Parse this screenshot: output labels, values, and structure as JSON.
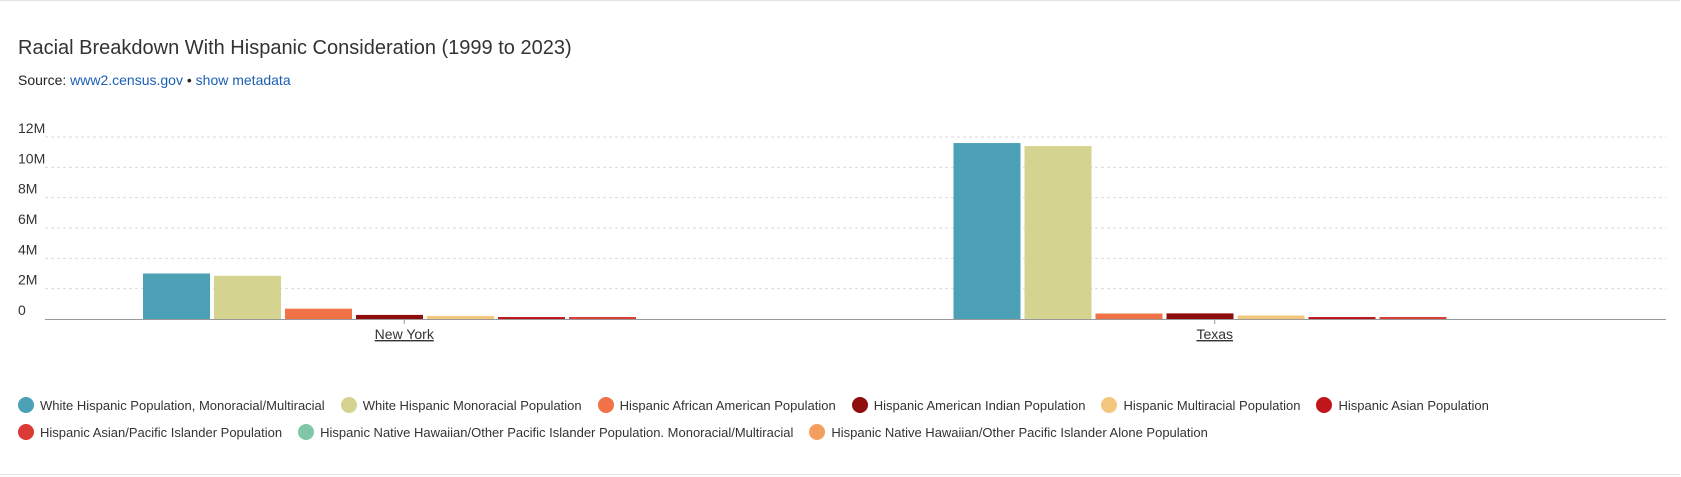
{
  "header": {
    "title": "Racial Breakdown With Hispanic Consideration (1999 to 2023)",
    "source_label": "Source:",
    "source_link": "www2.census.gov",
    "separator": "•",
    "metadata_link": "show metadata"
  },
  "chart_data": {
    "type": "bar",
    "title": "Racial Breakdown With Hispanic Consideration (1999 to 2023)",
    "xlabel": "",
    "ylabel": "",
    "categories": [
      "New York",
      "Texas"
    ],
    "ylim": [
      0,
      12000000
    ],
    "yticks": [
      {
        "value": 0,
        "label": "0"
      },
      {
        "value": 2000000,
        "label": "2M"
      },
      {
        "value": 4000000,
        "label": "4M"
      },
      {
        "value": 6000000,
        "label": "6M"
      },
      {
        "value": 8000000,
        "label": "8M"
      },
      {
        "value": 10000000,
        "label": "10M"
      },
      {
        "value": 12000000,
        "label": "12M"
      }
    ],
    "grid": true,
    "legend_position": "bottom",
    "series": [
      {
        "name": "White Hispanic Population, Monoracial/Multiracial",
        "color": "#4ba0b5",
        "values": [
          3000000,
          11600000
        ]
      },
      {
        "name": "White Hispanic Monoracial Population",
        "color": "#d4d38f",
        "values": [
          2850000,
          11400000
        ]
      },
      {
        "name": "Hispanic African American Population",
        "color": "#f07246",
        "values": [
          680000,
          360000
        ]
      },
      {
        "name": "Hispanic American Indian Population",
        "color": "#8f0d0d",
        "values": [
          270000,
          370000
        ]
      },
      {
        "name": "Hispanic Multiracial Population",
        "color": "#f4c77e",
        "values": [
          200000,
          230000
        ]
      },
      {
        "name": "Hispanic Asian Population",
        "color": "#c0151b",
        "values": [
          130000,
          130000
        ]
      },
      {
        "name": "Hispanic Asian/Pacific Islander Population",
        "color": "#db3a35",
        "values": [
          130000,
          130000
        ]
      },
      {
        "name": "Hispanic Native Hawaiian/Other Pacific Islander Population. Monoracial/Multiracial",
        "color": "#82c5a8",
        "values": [
          0,
          0
        ]
      },
      {
        "name": "Hispanic Native Hawaiian/Other Pacific Islander Alone Population",
        "color": "#f59f5f",
        "values": [
          0,
          0
        ]
      }
    ]
  }
}
